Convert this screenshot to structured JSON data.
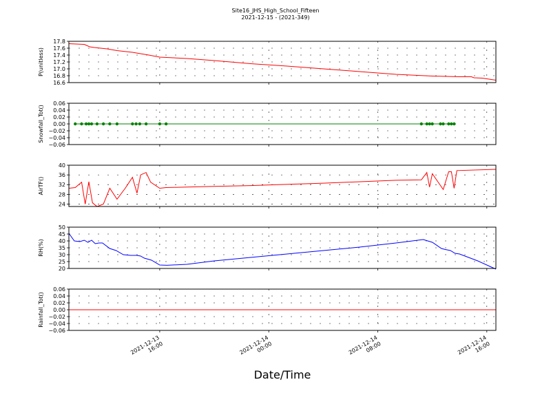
{
  "figure": {
    "title_line1": "Site16_JHS_High_School_Fifteen",
    "title_line2": "2021-12-15 - (2021-349)",
    "xlabel": "Date/Time"
  },
  "chart_data": [
    {
      "type": "line",
      "ylabel": "P(unitless)",
      "ylim": [
        16.6,
        17.8
      ],
      "yticks": [
        "17.8",
        "17.6",
        "17.4",
        "17.2",
        "17.0",
        "16.8",
        "16.6"
      ],
      "ytick_values": [
        17.8,
        17.6,
        17.4,
        17.2,
        17.0,
        16.8,
        16.6
      ],
      "xlim_hours": [
        -4.0,
        43.0
      ],
      "grid": true,
      "series": [
        {
          "color": "#ff0000",
          "markers": false,
          "x": [
            -4.0,
            -2.3,
            -1.7,
            -1.2,
            -0.5,
            0.2,
            1.3,
            3.0,
            4.8,
            6.0,
            9.0,
            12.0,
            16.0,
            20.0,
            24.0,
            28.0,
            32.0,
            36.0,
            39.0,
            40.3,
            40.6,
            41.5,
            43.0
          ],
          "y": [
            17.73,
            17.71,
            17.64,
            17.62,
            17.6,
            17.58,
            17.53,
            17.48,
            17.4,
            17.34,
            17.3,
            17.24,
            17.15,
            17.08,
            17.0,
            16.92,
            16.84,
            16.79,
            16.77,
            16.77,
            16.74,
            16.73,
            16.67
          ]
        }
      ]
    },
    {
      "type": "line",
      "ylabel": "Snowfall_Tot()",
      "ylim": [
        -0.06,
        0.06
      ],
      "yticks": [
        "0.06",
        "0.04",
        "0.02",
        "0.00",
        "−0.02",
        "−0.04",
        "−0.06"
      ],
      "ytick_values": [
        0.06,
        0.04,
        0.02,
        0.0,
        -0.02,
        -0.04,
        -0.06
      ],
      "xlim_hours": [
        -4.0,
        43.0
      ],
      "grid": true,
      "series": [
        {
          "color": "#008000",
          "markers": true,
          "x": [
            -3.3,
            -2.6,
            -2.1,
            -1.8,
            -1.5,
            -0.9,
            -0.2,
            0.5,
            1.3,
            3.0,
            3.4,
            3.8,
            4.5,
            6.0,
            6.7,
            34.8,
            35.4,
            35.7,
            36.0,
            36.9,
            37.2,
            37.8,
            38.1,
            38.4
          ],
          "y": [
            0,
            0,
            0,
            0,
            0,
            0,
            0,
            0,
            0,
            0,
            0,
            0,
            0,
            0,
            0,
            0,
            0,
            0,
            0,
            0,
            0,
            0,
            0,
            0
          ]
        }
      ]
    },
    {
      "type": "line",
      "ylabel": "AirTF()",
      "ylim": [
        23.0,
        40.0
      ],
      "yticks": [
        "40",
        "36",
        "32",
        "28",
        "24"
      ],
      "ytick_values": [
        40,
        36,
        32,
        28,
        24
      ],
      "xlim_hours": [
        -4.0,
        43.0
      ],
      "grid": true,
      "series": [
        {
          "color": "#ff0000",
          "markers": false,
          "x": [
            -4.0,
            -3.3,
            -2.6,
            -2.2,
            -1.8,
            -1.4,
            -0.9,
            -0.2,
            0.5,
            1.3,
            2.2,
            3.0,
            3.5,
            3.9,
            4.5,
            5.0,
            6.0,
            6.7,
            9.0,
            12.0,
            16.0,
            24.0,
            32.0,
            34.8,
            35.4,
            35.7,
            36.0,
            37.2,
            37.8,
            38.1,
            38.4,
            38.7,
            43.0
          ],
          "y": [
            30.5,
            30.8,
            33.0,
            24.0,
            33.2,
            24.5,
            23.0,
            24.0,
            30.5,
            26.0,
            30.5,
            35.0,
            28.5,
            36.0,
            37.0,
            33.0,
            30.5,
            30.8,
            31.0,
            31.3,
            31.6,
            32.6,
            33.8,
            34.0,
            37.0,
            31.0,
            36.5,
            30.0,
            37.3,
            37.3,
            30.5,
            37.8,
            38.3
          ]
        }
      ]
    },
    {
      "type": "line",
      "ylabel": "RH(%)",
      "ylim": [
        20,
        50
      ],
      "yticks": [
        "50",
        "45",
        "40",
        "35",
        "30",
        "25",
        "20"
      ],
      "ytick_values": [
        50,
        45,
        40,
        35,
        30,
        25,
        20
      ],
      "xlim_hours": [
        -4.0,
        43.0
      ],
      "grid": true,
      "series": [
        {
          "color": "#0000ff",
          "markers": false,
          "x": [
            -4.0,
            -3.4,
            -2.8,
            -2.3,
            -1.9,
            -1.5,
            -1.1,
            -0.7,
            -0.3,
            0.5,
            1.2,
            2.0,
            2.8,
            3.5,
            3.9,
            4.3,
            5.1,
            6.0,
            6.8,
            9.0,
            12.0,
            16.0,
            20.0,
            24.0,
            28.0,
            32.0,
            35.0,
            36.0,
            37.0,
            37.4,
            38.0,
            38.5,
            39.0,
            40.0,
            41.0,
            42.0,
            43.0
          ],
          "y": [
            45.5,
            40.0,
            39.5,
            40.5,
            39.0,
            40.5,
            38.0,
            38.5,
            38.5,
            34.5,
            33.0,
            30.0,
            29.5,
            29.5,
            29.0,
            27.5,
            26.0,
            22.5,
            22.3,
            23.0,
            25.5,
            28.0,
            30.5,
            33.0,
            35.5,
            38.5,
            41.0,
            39.0,
            34.5,
            33.8,
            33.0,
            31.0,
            30.5,
            28.0,
            25.5,
            22.5,
            19.5
          ]
        }
      ]
    },
    {
      "type": "line",
      "ylabel": "Rainfall_Tot()",
      "ylim": [
        -0.06,
        0.06
      ],
      "yticks": [
        "0.06",
        "0.04",
        "0.02",
        "0.00",
        "−0.02",
        "−0.04",
        "−0.06"
      ],
      "ytick_values": [
        0.06,
        0.04,
        0.02,
        0.0,
        -0.02,
        -0.04,
        -0.06
      ],
      "xlim_hours": [
        -4.0,
        43.0
      ],
      "grid": true,
      "series": [
        {
          "color": "#ff0000",
          "markers": false,
          "x": [
            -4.0,
            43.0
          ],
          "y": [
            0,
            0
          ]
        }
      ]
    }
  ],
  "xaxis": {
    "ticks": [
      {
        "hours": 6,
        "line1": "2021-12-13",
        "line2": "16:00"
      },
      {
        "hours": 18,
        "line1": "2021-12-14",
        "line2": "00:00"
      },
      {
        "hours": 30,
        "line1": "2021-12-14",
        "line2": "08:00"
      },
      {
        "hours": 42,
        "line1": "2021-12-14",
        "line2": "16:00"
      }
    ]
  }
}
